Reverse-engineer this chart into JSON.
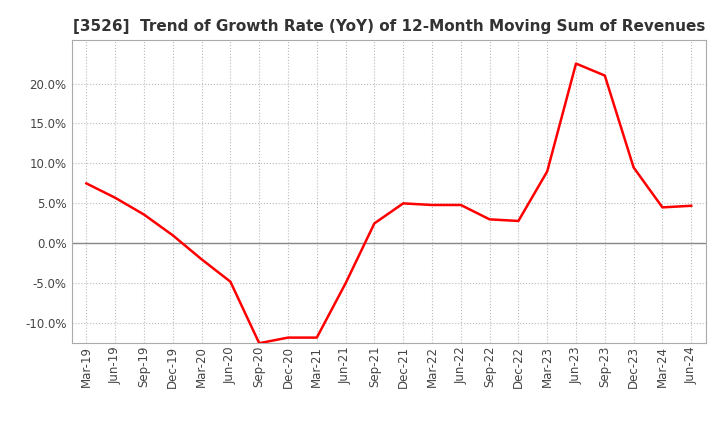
{
  "title": "[3526]  Trend of Growth Rate (YoY) of 12-Month Moving Sum of Revenues",
  "line_color": "#ff0000",
  "background_color": "#ffffff",
  "plot_bg_color": "#ffffff",
  "grid_color": "#bbbbbb",
  "zero_line_color": "#888888",
  "ylim": [
    -0.125,
    0.255
  ],
  "yticks": [
    -0.1,
    -0.05,
    0.0,
    0.05,
    0.1,
    0.15,
    0.2
  ],
  "dates": [
    "Mar-19",
    "Jun-19",
    "Sep-19",
    "Dec-19",
    "Mar-20",
    "Jun-20",
    "Sep-20",
    "Dec-20",
    "Mar-21",
    "Jun-21",
    "Sep-21",
    "Dec-21",
    "Mar-22",
    "Jun-22",
    "Sep-22",
    "Dec-22",
    "Mar-23",
    "Jun-23",
    "Sep-23",
    "Dec-23",
    "Mar-24",
    "Jun-24"
  ],
  "values": [
    0.075,
    0.057,
    0.036,
    0.01,
    -0.02,
    -0.048,
    -0.125,
    -0.118,
    -0.118,
    -0.05,
    0.025,
    0.05,
    0.048,
    0.048,
    0.03,
    0.028,
    0.09,
    0.225,
    0.21,
    0.095,
    0.045,
    0.047
  ],
  "title_fontsize": 11,
  "tick_fontsize": 8.5,
  "line_width": 1.8
}
